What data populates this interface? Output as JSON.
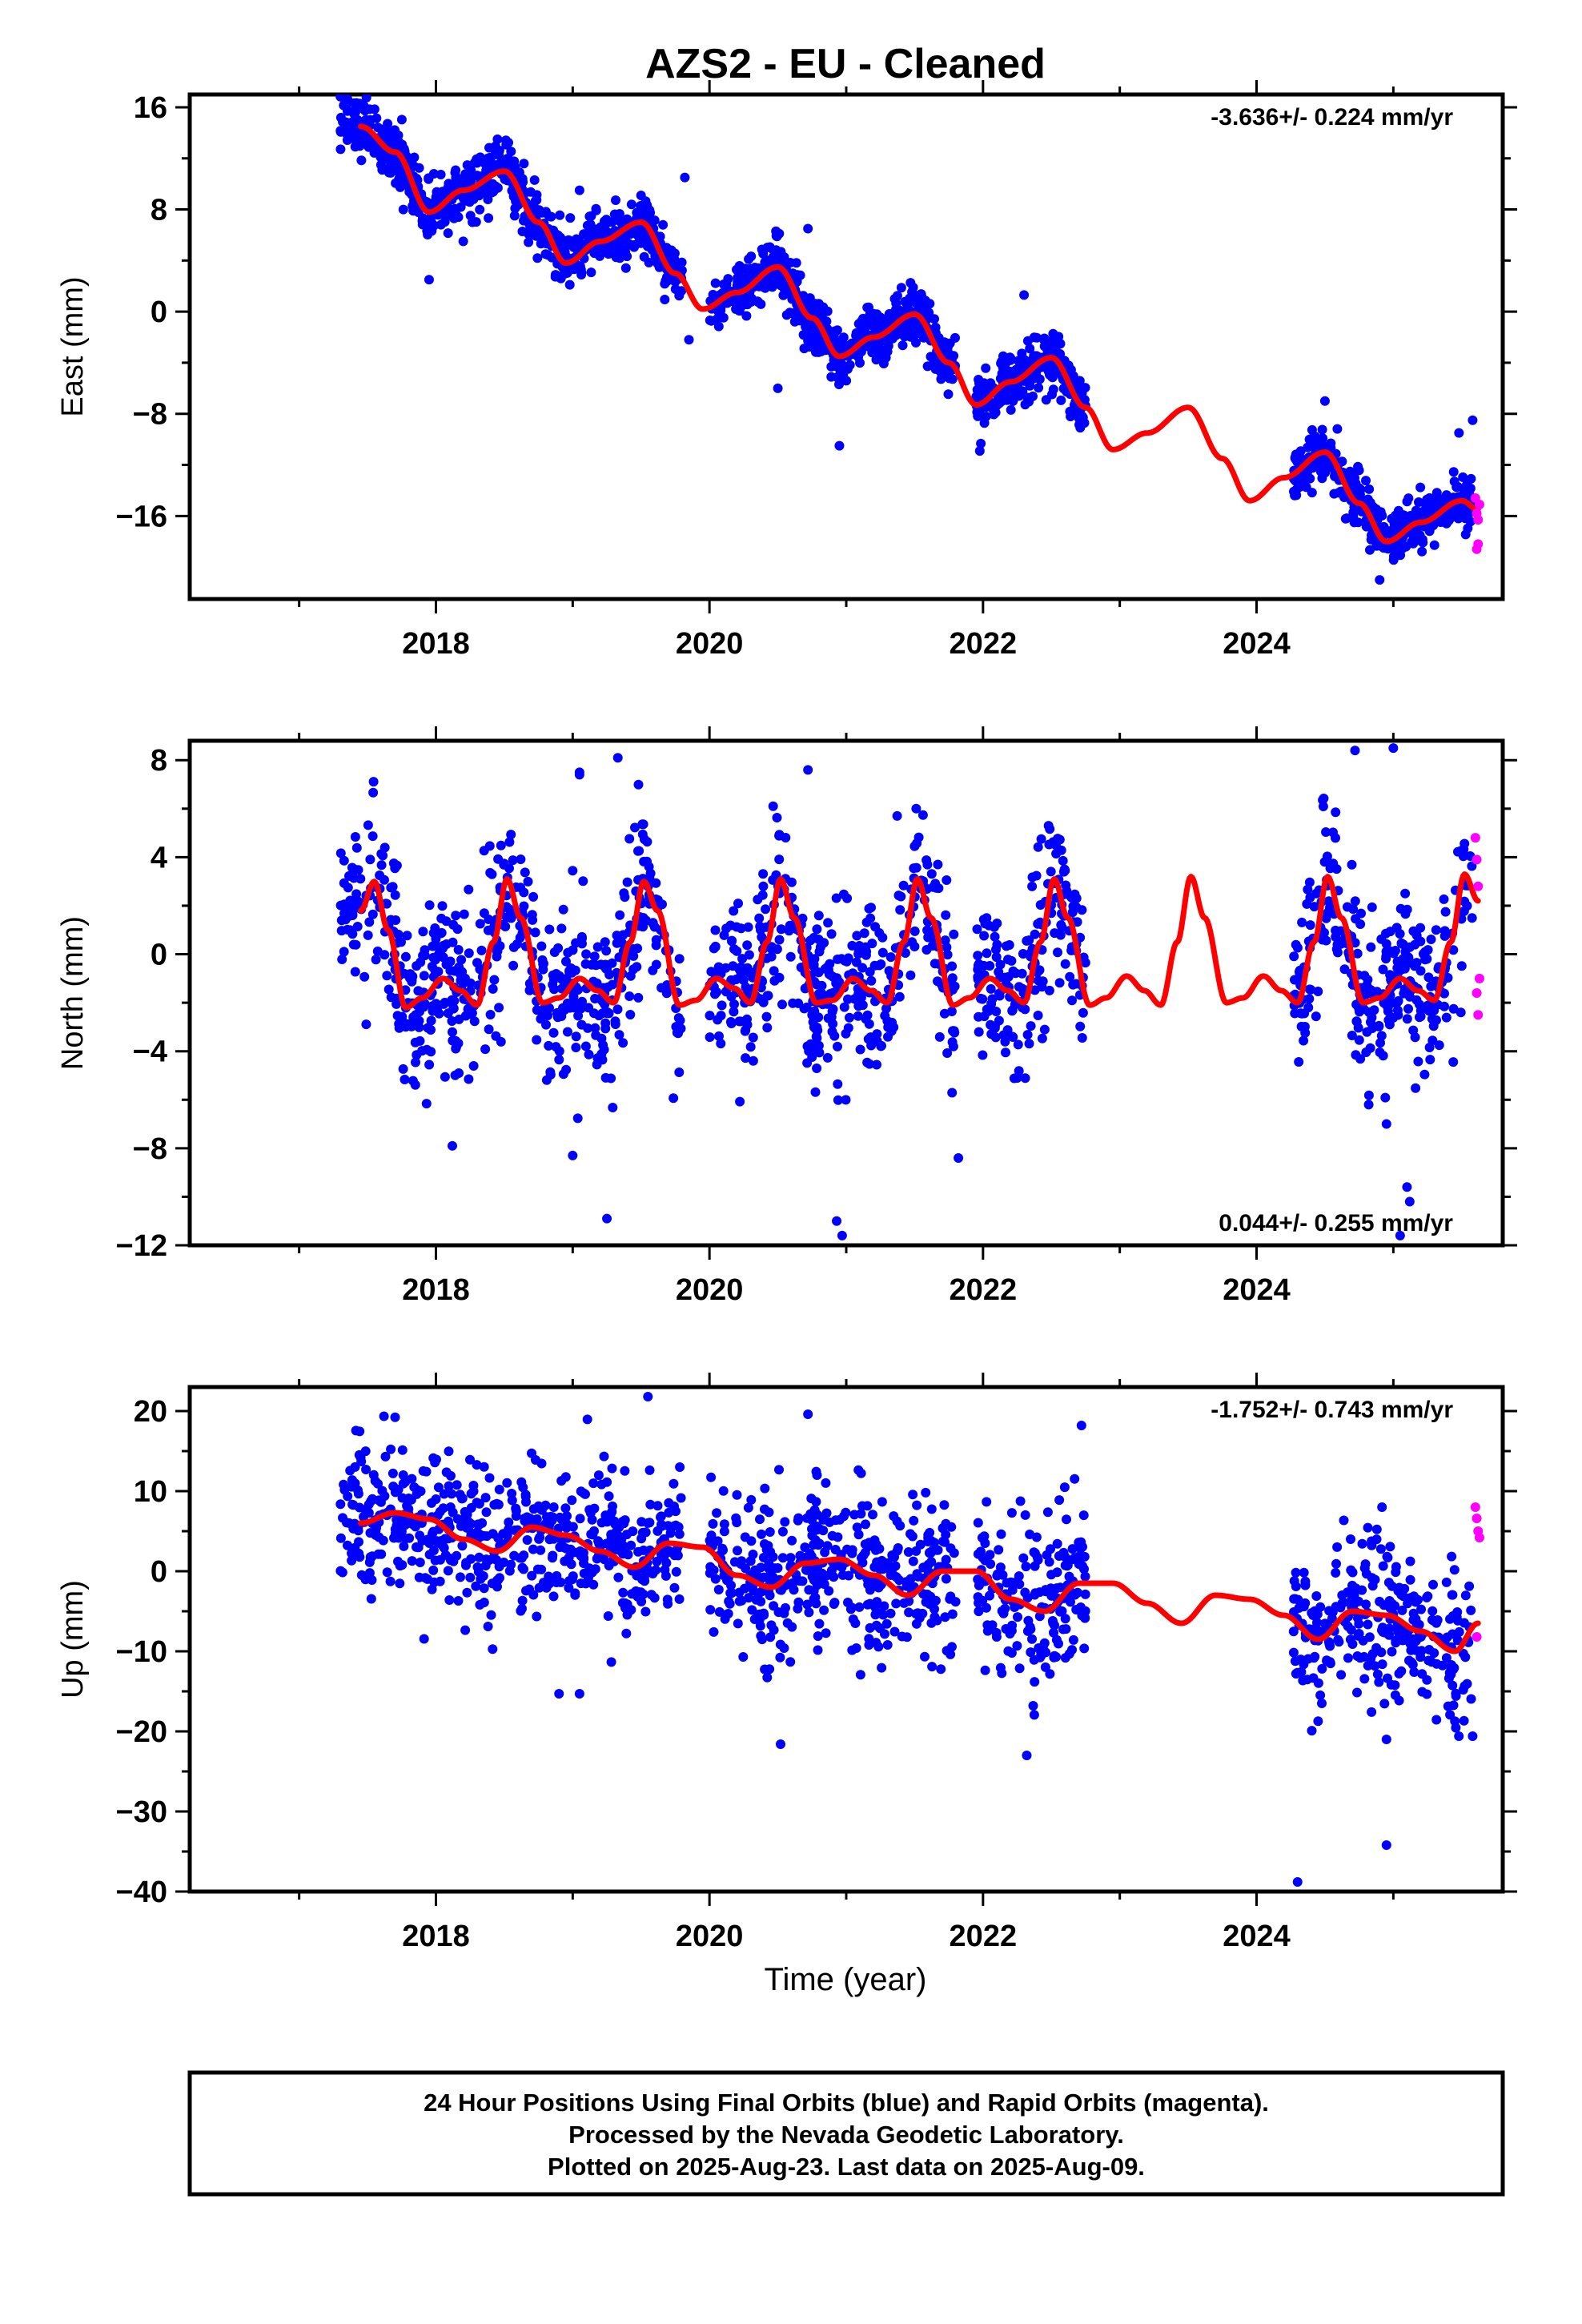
{
  "title": "AZS2  - EU - Cleaned",
  "xlabel": "Time (year)",
  "footer": {
    "line1": "24 Hour Positions Using Final Orbits (blue) and Rapid Orbits (magenta).",
    "line2": "Processed by the Nevada Geodetic Laboratory.",
    "line3": "Plotted on 2025-Aug-23. Last data on 2025-Aug-09."
  },
  "colors": {
    "final_orbits": "#0000ff",
    "rapid_orbits": "#ff00ff",
    "model": "#ff0000",
    "axes": "#000000"
  },
  "chart_data": [
    {
      "type": "scatter",
      "ylabel": "East (mm)",
      "rate": "-3.636+/- 0.224 mm/yr",
      "rate_position": "top-right",
      "xlim": [
        2016.2,
        2025.8
      ],
      "ylim": [
        -22.5,
        17
      ],
      "xticks": [
        2018,
        2020,
        2022,
        2024
      ],
      "xtick_labels": [
        "2018",
        "2020",
        "2022",
        "2024"
      ],
      "yticks": [
        16,
        8,
        0,
        -8,
        -16
      ],
      "ytick_labels": [
        "16",
        "8",
        "0",
        "−8",
        "−16"
      ],
      "model": {
        "points": [
          [
            2017.45,
            14.5
          ],
          [
            2017.7,
            12.5
          ],
          [
            2017.95,
            7.8
          ],
          [
            2018.2,
            9.5
          ],
          [
            2018.5,
            11
          ],
          [
            2018.75,
            7
          ],
          [
            2018.95,
            3.8
          ],
          [
            2019.2,
            5.5
          ],
          [
            2019.5,
            7
          ],
          [
            2019.75,
            3
          ],
          [
            2019.95,
            0.2
          ],
          [
            2020.2,
            1.5
          ],
          [
            2020.5,
            3.5
          ],
          [
            2020.75,
            -0.5
          ],
          [
            2020.95,
            -3.5
          ],
          [
            2021.2,
            -2
          ],
          [
            2021.5,
            -0.2
          ],
          [
            2021.75,
            -4
          ],
          [
            2021.95,
            -7.3
          ],
          [
            2022.2,
            -5.5
          ],
          [
            2022.5,
            -3.6
          ],
          [
            2022.75,
            -7.5
          ],
          [
            2022.95,
            -10.8
          ],
          [
            2023.2,
            -9.5
          ],
          [
            2023.5,
            -7.5
          ],
          [
            2023.75,
            -11.5
          ],
          [
            2023.95,
            -14.8
          ],
          [
            2024.2,
            -13
          ],
          [
            2024.5,
            -11
          ],
          [
            2024.75,
            -15
          ],
          [
            2024.95,
            -18
          ],
          [
            2025.2,
            -16.5
          ],
          [
            2025.5,
            -14.8
          ],
          [
            2025.62,
            -15.5
          ]
        ]
      },
      "series": [
        {
          "name": "Final Orbits",
          "segments": [
            [
              2017.3,
              2017.75
            ],
            [
              2017.75,
              2018.8
            ],
            [
              2018.8,
              2019.8
            ],
            [
              2020.0,
              2020.8
            ],
            [
              2020.75,
              2021.8
            ],
            [
              2021.95,
              2022.75
            ],
            [
              2024.27,
              2024.8
            ],
            [
              2024.8,
              2025.58
            ]
          ],
          "scatter_sd": 1.1,
          "count_per_year": 300
        },
        {
          "name": "Rapid Orbits",
          "x": [
            2025.6,
            2025.61,
            2025.62,
            2025.63,
            2025.62,
            2025.61
          ],
          "y": [
            -14.6,
            -15.8,
            -16.3,
            -15.1,
            -18.2,
            -18.6
          ]
        }
      ],
      "outliers": [
        [
          2017.95,
          2.5
        ],
        [
          2018.2,
          5.5
        ],
        [
          2018.45,
          13.5
        ],
        [
          2019.05,
          9.5
        ],
        [
          2019.82,
          10.5
        ],
        [
          2019.85,
          -2.2
        ],
        [
          2020.5,
          -6
        ],
        [
          2020.72,
          6.5
        ],
        [
          2020.95,
          -10.5
        ],
        [
          2022.3,
          1.3
        ],
        [
          2024.5,
          -7
        ],
        [
          2024.9,
          -21
        ],
        [
          2025.48,
          -9.5
        ],
        [
          2025.58,
          -8.5
        ]
      ]
    },
    {
      "type": "scatter",
      "ylabel": "North (mm)",
      "rate": "0.044+/- 0.255 mm/yr",
      "rate_position": "bottom-right",
      "xlim": [
        2016.2,
        2025.8
      ],
      "ylim": [
        -12,
        8.8
      ],
      "xticks": [
        2018,
        2020,
        2022,
        2024
      ],
      "xtick_labels": [
        "2018",
        "2020",
        "2022",
        "2024"
      ],
      "yticks": [
        8,
        4,
        0,
        -4,
        -8,
        -12
      ],
      "ytick_labels": [
        "8",
        "4",
        "0",
        "−4",
        "−8",
        "−12"
      ],
      "model": {
        "points": [
          [
            2017.45,
            1.8
          ],
          [
            2017.55,
            3.0
          ],
          [
            2017.65,
            1.0
          ],
          [
            2017.78,
            -2.2
          ],
          [
            2017.9,
            -1.8
          ],
          [
            2018.05,
            -1.0
          ],
          [
            2018.18,
            -1.5
          ],
          [
            2018.3,
            -2.1
          ],
          [
            2018.42,
            0.5
          ],
          [
            2018.52,
            3.1
          ],
          [
            2018.62,
            1.5
          ],
          [
            2018.78,
            -2.0
          ],
          [
            2018.9,
            -1.8
          ],
          [
            2019.05,
            -1.0
          ],
          [
            2019.18,
            -1.5
          ],
          [
            2019.3,
            -2.0
          ],
          [
            2019.42,
            0.5
          ],
          [
            2019.52,
            3.0
          ],
          [
            2019.62,
            1.8
          ],
          [
            2019.78,
            -2.1
          ],
          [
            2019.9,
            -1.9
          ],
          [
            2020.05,
            -1.0
          ],
          [
            2020.18,
            -1.4
          ],
          [
            2020.3,
            -2.0
          ],
          [
            2020.42,
            0.5
          ],
          [
            2020.52,
            3.1
          ],
          [
            2020.62,
            1.5
          ],
          [
            2020.78,
            -2.0
          ],
          [
            2020.9,
            -1.9
          ],
          [
            2021.05,
            -1.0
          ],
          [
            2021.18,
            -1.5
          ],
          [
            2021.3,
            -2.0
          ],
          [
            2021.42,
            0.5
          ],
          [
            2021.52,
            3.1
          ],
          [
            2021.62,
            1.5
          ],
          [
            2021.78,
            -2.1
          ],
          [
            2021.9,
            -1.8
          ],
          [
            2022.05,
            -1.0
          ],
          [
            2022.18,
            -1.5
          ],
          [
            2022.3,
            -2.0
          ],
          [
            2022.42,
            0.5
          ],
          [
            2022.52,
            3.1
          ],
          [
            2022.62,
            1.5
          ],
          [
            2022.78,
            -2.1
          ],
          [
            2022.9,
            -1.8
          ],
          [
            2023.05,
            -0.9
          ],
          [
            2023.18,
            -1.5
          ],
          [
            2023.3,
            -2.1
          ],
          [
            2023.42,
            0.5
          ],
          [
            2023.52,
            3.2
          ],
          [
            2023.62,
            1.5
          ],
          [
            2023.78,
            -2.0
          ],
          [
            2023.9,
            -1.8
          ],
          [
            2024.05,
            -0.9
          ],
          [
            2024.18,
            -1.5
          ],
          [
            2024.3,
            -2.0
          ],
          [
            2024.42,
            0.5
          ],
          [
            2024.52,
            3.2
          ],
          [
            2024.62,
            1.5
          ],
          [
            2024.78,
            -2.0
          ],
          [
            2024.9,
            -1.8
          ],
          [
            2025.05,
            -1.0
          ],
          [
            2025.18,
            -1.5
          ],
          [
            2025.3,
            -1.9
          ],
          [
            2025.42,
            0.5
          ],
          [
            2025.52,
            3.3
          ],
          [
            2025.62,
            2.2
          ]
        ]
      },
      "series": [
        {
          "name": "Final Orbits",
          "segments": [
            [
              2017.3,
              2017.75
            ],
            [
              2017.75,
              2018.8
            ],
            [
              2018.8,
              2019.8
            ],
            [
              2020.0,
              2020.8
            ],
            [
              2020.75,
              2021.8
            ],
            [
              2021.95,
              2022.75
            ],
            [
              2024.27,
              2024.8
            ],
            [
              2024.8,
              2025.58
            ]
          ],
          "scatter_sd": 1.7,
          "count_per_year": 230
        },
        {
          "name": "Rapid Orbits",
          "x": [
            2025.6,
            2025.61,
            2025.62,
            2025.63,
            2025.61,
            2025.62
          ],
          "y": [
            4.8,
            3.9,
            2.8,
            -1.0,
            -1.6,
            -2.5
          ]
        }
      ],
      "outliers": [
        [
          2019.05,
          7.5
        ],
        [
          2019.05,
          7.4
        ],
        [
          2019.33,
          8.1
        ],
        [
          2020.72,
          7.6
        ],
        [
          2024.72,
          8.4
        ],
        [
          2025.0,
          8.5
        ],
        [
          2019.25,
          -10.9
        ],
        [
          2020.97,
          -11.6
        ],
        [
          2020.93,
          -11.0
        ],
        [
          2025.05,
          -11.6
        ],
        [
          2025.12,
          -10.2
        ],
        [
          2019.0,
          -8.3
        ],
        [
          2021.82,
          -8.4
        ],
        [
          2018.12,
          -7.9
        ],
        [
          2024.82,
          -6.2
        ],
        [
          2024.95,
          -7.0
        ],
        [
          2025.1,
          -9.6
        ]
      ]
    },
    {
      "type": "scatter",
      "ylabel": "Up (mm)",
      "rate": "-1.752+/- 0.743 mm/yr",
      "rate_position": "top-right",
      "xlim": [
        2016.2,
        2025.8
      ],
      "ylim": [
        -40,
        23
      ],
      "xticks": [
        2018,
        2020,
        2022,
        2024
      ],
      "xtick_labels": [
        "2018",
        "2020",
        "2022",
        "2024"
      ],
      "yticks": [
        20,
        10,
        0,
        -10,
        -20,
        -30,
        -40
      ],
      "ytick_labels": [
        "20",
        "10",
        "0",
        "−10",
        "−20",
        "−30",
        "−40"
      ],
      "model": {
        "points": [
          [
            2017.45,
            6.0
          ],
          [
            2017.7,
            7.3
          ],
          [
            2017.95,
            6.5
          ],
          [
            2018.2,
            4.0
          ],
          [
            2018.45,
            2.5
          ],
          [
            2018.7,
            5.5
          ],
          [
            2018.95,
            4.5
          ],
          [
            2019.2,
            2.5
          ],
          [
            2019.45,
            0.5
          ],
          [
            2019.7,
            3.5
          ],
          [
            2019.95,
            3.0
          ],
          [
            2020.2,
            -0.5
          ],
          [
            2020.45,
            -2.0
          ],
          [
            2020.7,
            1.0
          ],
          [
            2020.95,
            1.5
          ],
          [
            2021.2,
            -0.5
          ],
          [
            2021.45,
            -3.0
          ],
          [
            2021.7,
            0.0
          ],
          [
            2021.95,
            0.0
          ],
          [
            2022.2,
            -3.5
          ],
          [
            2022.45,
            -5.0
          ],
          [
            2022.7,
            -1.5
          ],
          [
            2022.95,
            -1.5
          ],
          [
            2023.2,
            -4.0
          ],
          [
            2023.45,
            -6.5
          ],
          [
            2023.7,
            -3.0
          ],
          [
            2023.95,
            -3.5
          ],
          [
            2024.2,
            -5.5
          ],
          [
            2024.45,
            -8.5
          ],
          [
            2024.7,
            -5.0
          ],
          [
            2024.95,
            -5.5
          ],
          [
            2025.2,
            -7.5
          ],
          [
            2025.45,
            -10.0
          ],
          [
            2025.62,
            -6.5
          ]
        ]
      },
      "series": [
        {
          "name": "Final Orbits",
          "segments": [
            [
              2017.3,
              2017.75
            ],
            [
              2017.75,
              2018.8
            ],
            [
              2018.8,
              2019.8
            ],
            [
              2020.0,
              2020.8
            ],
            [
              2020.75,
              2021.8
            ],
            [
              2021.95,
              2022.75
            ],
            [
              2024.27,
              2024.8
            ],
            [
              2024.8,
              2025.58
            ]
          ],
          "scatter_sd": 4.8,
          "count_per_year": 230
        },
        {
          "name": "Rapid Orbits",
          "x": [
            2025.6,
            2025.61,
            2025.62,
            2025.63,
            2025.61
          ],
          "y": [
            8.0,
            6.6,
            5.0,
            4.2,
            -8.2
          ]
        }
      ],
      "outliers": [
        [
          2019.55,
          21.8
        ],
        [
          2020.72,
          19.6
        ],
        [
          2022.72,
          18.2
        ],
        [
          2024.3,
          -38.8
        ],
        [
          2024.95,
          -34.2
        ],
        [
          2020.52,
          -21.6
        ],
        [
          2022.32,
          -23.0
        ],
        [
          2025.58,
          -20.6
        ],
        [
          2024.95,
          -21.0
        ],
        [
          2018.9,
          -15.3
        ],
        [
          2019.05,
          -15.3
        ]
      ]
    }
  ]
}
